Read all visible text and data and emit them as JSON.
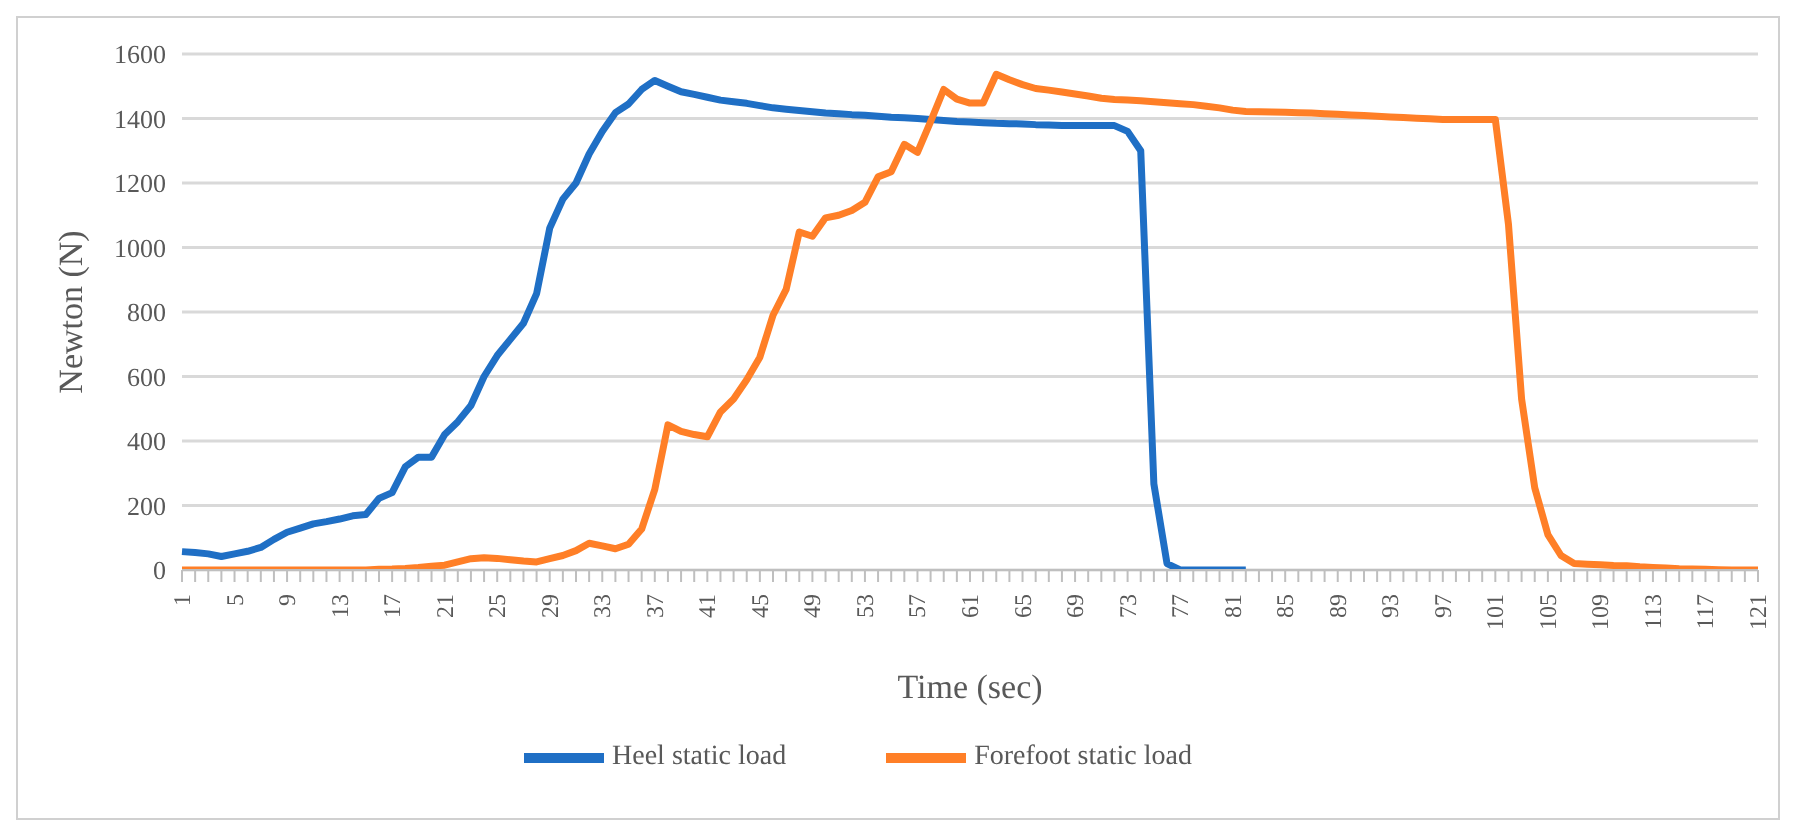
{
  "chart_data": {
    "type": "line",
    "xlabel": "Time (sec)",
    "ylabel": "Newton (N)",
    "categories": [
      "1",
      null,
      null,
      null,
      "5",
      null,
      null,
      null,
      "9",
      null,
      null,
      null,
      "13",
      null,
      null,
      null,
      "17",
      null,
      null,
      null,
      "21",
      null,
      null,
      null,
      "25",
      null,
      null,
      null,
      "29",
      null,
      null,
      null,
      "33",
      null,
      null,
      null,
      "37",
      null,
      null,
      null,
      "41",
      null,
      null,
      null,
      "45",
      null,
      null,
      null,
      "49",
      null,
      null,
      null,
      "53",
      null,
      null,
      null,
      "57",
      null,
      null,
      null,
      "61",
      null,
      null,
      null,
      "65",
      null,
      null,
      null,
      "69",
      null,
      null,
      null,
      "73",
      null,
      null,
      null,
      "77",
      null,
      null,
      null,
      "81",
      null,
      null,
      null,
      "85",
      null,
      null,
      null,
      "89",
      null,
      null,
      null,
      "93",
      null,
      null,
      null,
      "97",
      null,
      null,
      null,
      "101",
      null,
      null,
      null,
      "105",
      null,
      null,
      null,
      "109",
      null,
      null,
      null,
      "113",
      null,
      null,
      null,
      "117",
      null,
      null,
      null,
      "121"
    ],
    "series": [
      {
        "name": "Heel static load",
        "color": "#1f6fc5",
        "values": [
          57,
          54,
          50,
          42,
          50,
          58,
          70,
          95,
          117,
          130,
          143,
          150,
          158,
          168,
          172,
          222,
          240,
          320,
          350,
          350,
          420,
          460,
          510,
          600,
          665,
          715,
          765,
          857,
          1060,
          1150,
          1200,
          1290,
          1360,
          1418,
          1445,
          1490,
          1518,
          1500,
          1483,
          1475,
          1466,
          1457,
          1452,
          1447,
          1440,
          1433,
          1429,
          1425,
          1421,
          1417,
          1415,
          1412,
          1410,
          1407,
          1404,
          1402,
          1400,
          1397,
          1394,
          1391,
          1389,
          1387,
          1385,
          1384,
          1383,
          1381,
          1380,
          1378,
          1378,
          1378,
          1378,
          1378,
          1360,
          1300,
          267,
          20,
          0,
          0,
          0,
          0,
          0,
          0,
          null,
          null,
          null,
          null,
          null,
          null,
          null,
          null,
          null,
          null,
          null,
          null,
          null,
          null,
          null,
          null,
          null,
          null,
          null,
          null,
          null,
          null,
          null,
          null,
          null,
          null,
          null,
          null,
          null,
          null,
          null,
          null,
          null,
          null,
          null,
          null,
          null,
          null,
          null
        ]
      },
      {
        "name": "Forefoot static load",
        "color": "#ff7f27",
        "values": [
          0,
          0,
          0,
          0,
          0,
          0,
          0,
          0,
          0,
          0,
          0,
          0,
          0,
          0,
          0,
          2,
          3,
          5,
          8,
          12,
          15,
          25,
          35,
          38,
          36,
          32,
          28,
          25,
          35,
          45,
          60,
          83,
          75,
          66,
          80,
          127,
          250,
          450,
          430,
          420,
          413,
          490,
          530,
          590,
          660,
          790,
          870,
          1048,
          1035,
          1092,
          1100,
          1115,
          1140,
          1219,
          1235,
          1320,
          1295,
          1390,
          1490,
          1460,
          1448,
          1448,
          1537,
          1520,
          1505,
          1493,
          1488,
          1482,
          1476,
          1470,
          1463,
          1459,
          1457,
          1455,
          1452,
          1449,
          1446,
          1443,
          1438,
          1433,
          1426,
          1422,
          1421,
          1420,
          1419,
          1418,
          1417,
          1415,
          1413,
          1411,
          1409,
          1407,
          1405,
          1403,
          1401,
          1399,
          1397,
          1397,
          1397,
          1397,
          1397,
          1072,
          530,
          255,
          110,
          45,
          20,
          18,
          16,
          14,
          13,
          10,
          8,
          6,
          4,
          3,
          2,
          1,
          0,
          0,
          0
        ]
      }
    ],
    "ylim": [
      0,
      1600
    ],
    "yticks": [
      0,
      200,
      400,
      600,
      800,
      1000,
      1200,
      1400,
      1600
    ],
    "grid": "y",
    "legend": "bottom",
    "marker": "none",
    "line_style": "solid"
  }
}
